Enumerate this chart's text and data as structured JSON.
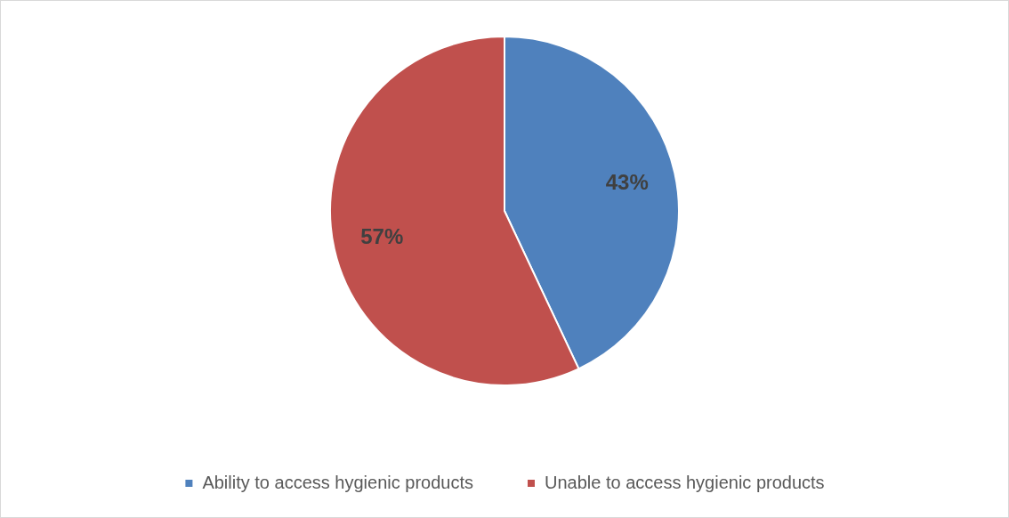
{
  "chart_data": {
    "type": "pie",
    "categories": [
      "Ability to access hygienic products",
      "Unable to access hygienic products"
    ],
    "values": [
      43,
      57
    ],
    "colors": [
      "#4f81bd",
      "#c0504d"
    ],
    "value_labels": [
      "43%",
      "57%"
    ],
    "legend": "bottom"
  }
}
